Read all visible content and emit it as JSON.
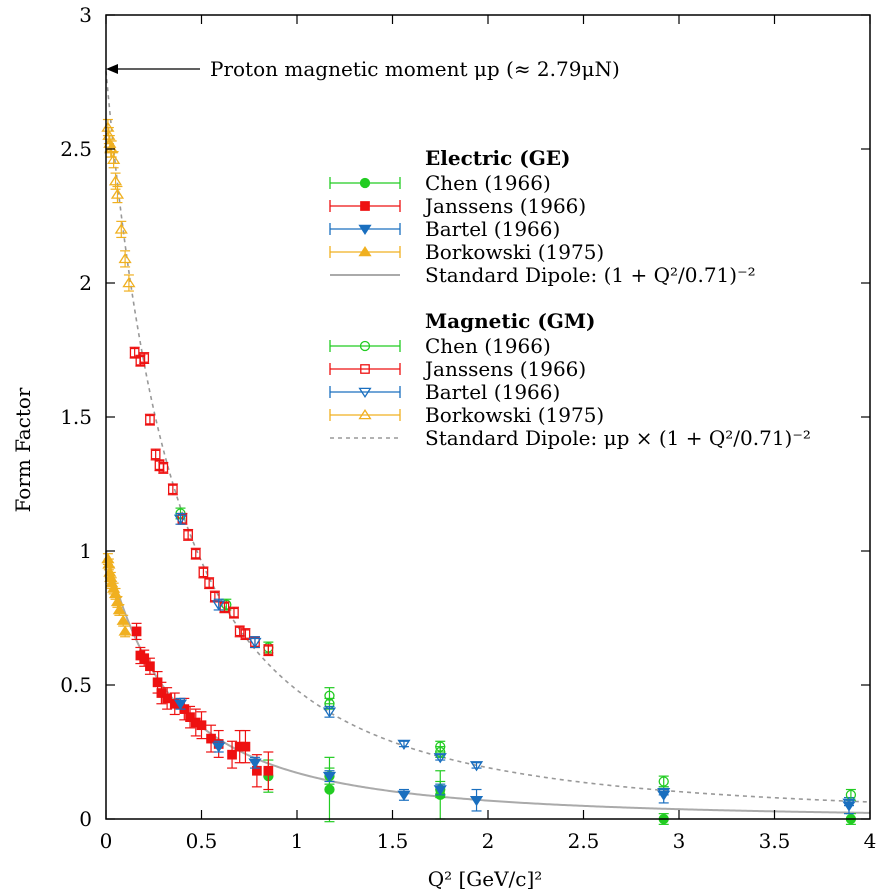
{
  "chart_data": {
    "type": "scatter",
    "xlabel": "Q² [GeV/c]²",
    "ylabel": "Form Factor",
    "xlim": [
      0,
      4
    ],
    "ylim": [
      0,
      3
    ],
    "x_ticks": [
      "0",
      "0.5",
      "1",
      "1.5",
      "2",
      "2.5",
      "3",
      "3.5",
      "4"
    ],
    "y_ticks": [
      "0",
      "0.5",
      "1",
      "1.5",
      "2",
      "2.5",
      "3"
    ],
    "x_tick_values": [
      0,
      0.5,
      1,
      1.5,
      2,
      2.5,
      3,
      3.5,
      4
    ],
    "y_tick_values": [
      0,
      0.5,
      1,
      1.5,
      2,
      2.5,
      3
    ],
    "grid": false,
    "legend_position": "upper-right",
    "annotation": {
      "text": "Proton magnetic moment μp (≈ 2.79μN)",
      "points_to": [
        0,
        2.79
      ]
    },
    "legend": {
      "electric_title": "Electric (GE)",
      "magnetic_title": "Magnetic (GM)",
      "electric_entries": [
        "Chen (1966)",
        "Janssens (1966)",
        "Bartel (1966)",
        "Borkowski (1975)",
        "Standard Dipole: (1 + Q²/0.71)⁻²"
      ],
      "magnetic_entries": [
        "Chen (1966)",
        "Janssens (1966)",
        "Bartel (1966)",
        "Borkowski (1975)",
        "Standard Dipole: μp × (1 + Q²/0.71)⁻²"
      ]
    },
    "colors": {
      "chen": "#22cc22",
      "janssens": "#ee1111",
      "bartel": "#1a6fbf",
      "borkowski": "#f0b020",
      "dipole_electric": "#aaaaaa",
      "dipole_magnetic": "#999999"
    },
    "curves": [
      {
        "name": "Standard Dipole: (1 + Q²/0.71)⁻²",
        "type": "line",
        "function": "dipole",
        "scale": 1,
        "style": "solid"
      },
      {
        "name": "Standard Dipole: μp × (1 + Q²/0.71)⁻²",
        "type": "line",
        "function": "dipole",
        "scale": 2.79,
        "style": "dashed"
      }
    ],
    "series": [
      {
        "name": "Chen (1966)",
        "group": "electric",
        "marker": "circle",
        "filled": true,
        "color_key": "chen",
        "points": [
          [
            0.85,
            0.16,
            0.06
          ],
          [
            1.17,
            0.11,
            0.12
          ],
          [
            1.17,
            0.16,
            0.03
          ],
          [
            1.75,
            0.09,
            0.09
          ],
          [
            1.75,
            0.11,
            0.03
          ],
          [
            2.92,
            0.0,
            0.02
          ],
          [
            3.9,
            0.0,
            0.02
          ]
        ]
      },
      {
        "name": "Janssens (1966)",
        "group": "electric",
        "marker": "square",
        "filled": true,
        "color_key": "janssens",
        "points": [
          [
            0.16,
            0.7,
            0.03
          ],
          [
            0.18,
            0.61,
            0.03
          ],
          [
            0.2,
            0.6,
            0.03
          ],
          [
            0.23,
            0.57,
            0.03
          ],
          [
            0.27,
            0.51,
            0.04
          ],
          [
            0.29,
            0.47,
            0.04
          ],
          [
            0.32,
            0.45,
            0.04
          ],
          [
            0.36,
            0.43,
            0.04
          ],
          [
            0.41,
            0.41,
            0.04
          ],
          [
            0.44,
            0.38,
            0.04
          ],
          [
            0.47,
            0.36,
            0.05
          ],
          [
            0.5,
            0.35,
            0.05
          ],
          [
            0.55,
            0.3,
            0.05
          ],
          [
            0.59,
            0.28,
            0.05
          ],
          [
            0.66,
            0.24,
            0.05
          ],
          [
            0.7,
            0.27,
            0.06
          ],
          [
            0.73,
            0.27,
            0.06
          ],
          [
            0.79,
            0.18,
            0.06
          ],
          [
            0.85,
            0.18,
            0.07
          ]
        ]
      },
      {
        "name": "Bartel (1966)",
        "group": "electric",
        "marker": "triangle-down",
        "filled": true,
        "color_key": "bartel",
        "points": [
          [
            0.39,
            0.43,
            0.02
          ],
          [
            0.59,
            0.27,
            0.02
          ],
          [
            0.78,
            0.21,
            0.02
          ],
          [
            1.17,
            0.16,
            0.02
          ],
          [
            1.56,
            0.09,
            0.02
          ],
          [
            1.75,
            0.11,
            0.02
          ],
          [
            1.94,
            0.07,
            0.04
          ],
          [
            2.92,
            0.09,
            0.03
          ],
          [
            3.89,
            0.05,
            0.03
          ]
        ]
      },
      {
        "name": "Borkowski (1975)",
        "group": "electric",
        "marker": "triangle-up",
        "filled": true,
        "color_key": "borkowski",
        "points": [
          [
            0.01,
            0.97,
            0.02
          ],
          [
            0.015,
            0.95,
            0.02
          ],
          [
            0.02,
            0.92,
            0.02
          ],
          [
            0.025,
            0.9,
            0.02
          ],
          [
            0.03,
            0.88,
            0.02
          ],
          [
            0.04,
            0.86,
            0.02
          ],
          [
            0.05,
            0.84,
            0.02
          ],
          [
            0.06,
            0.81,
            0.02
          ],
          [
            0.07,
            0.78,
            0.02
          ],
          [
            0.09,
            0.74,
            0.02
          ],
          [
            0.1,
            0.7,
            0.02
          ]
        ]
      },
      {
        "name": "Chen (1966)",
        "group": "magnetic",
        "marker": "circle",
        "filled": false,
        "color_key": "chen",
        "points": [
          [
            0.39,
            1.14,
            0.02
          ],
          [
            0.63,
            0.8,
            0.02
          ],
          [
            0.85,
            0.64,
            0.02
          ],
          [
            1.17,
            0.46,
            0.03
          ],
          [
            1.17,
            0.43,
            0.02
          ],
          [
            1.75,
            0.27,
            0.02
          ],
          [
            1.75,
            0.25,
            0.02
          ],
          [
            2.92,
            0.14,
            0.02
          ],
          [
            3.9,
            0.09,
            0.02
          ]
        ]
      },
      {
        "name": "Janssens (1966)",
        "group": "magnetic",
        "marker": "square",
        "filled": false,
        "color_key": "janssens",
        "points": [
          [
            0.15,
            1.74,
            0.02
          ],
          [
            0.18,
            1.71,
            0.02
          ],
          [
            0.2,
            1.72,
            0.02
          ],
          [
            0.23,
            1.49,
            0.02
          ],
          [
            0.26,
            1.36,
            0.02
          ],
          [
            0.28,
            1.32,
            0.02
          ],
          [
            0.3,
            1.31,
            0.02
          ],
          [
            0.35,
            1.23,
            0.02
          ],
          [
            0.4,
            1.12,
            0.02
          ],
          [
            0.43,
            1.06,
            0.02
          ],
          [
            0.47,
            0.99,
            0.02
          ],
          [
            0.51,
            0.92,
            0.02
          ],
          [
            0.54,
            0.88,
            0.02
          ],
          [
            0.57,
            0.83,
            0.02
          ],
          [
            0.62,
            0.79,
            0.02
          ],
          [
            0.67,
            0.77,
            0.02
          ],
          [
            0.7,
            0.7,
            0.02
          ],
          [
            0.73,
            0.69,
            0.02
          ],
          [
            0.78,
            0.66,
            0.02
          ],
          [
            0.85,
            0.63,
            0.02
          ]
        ]
      },
      {
        "name": "Bartel (1966)",
        "group": "magnetic",
        "marker": "triangle-down",
        "filled": false,
        "color_key": "bartel",
        "points": [
          [
            0.39,
            1.12,
            0.02
          ],
          [
            0.59,
            0.8,
            0.02
          ],
          [
            0.78,
            0.66,
            0.02
          ],
          [
            1.17,
            0.4,
            0.02
          ],
          [
            1.56,
            0.28,
            0.01
          ],
          [
            1.75,
            0.23,
            0.01
          ],
          [
            1.94,
            0.2,
            0.01
          ],
          [
            2.92,
            0.1,
            0.01
          ],
          [
            3.89,
            0.06,
            0.01
          ]
        ]
      },
      {
        "name": "Borkowski (1975)",
        "group": "magnetic",
        "marker": "triangle-up",
        "filled": false,
        "color_key": "borkowski",
        "points": [
          [
            0.01,
            2.58,
            0.03
          ],
          [
            0.015,
            2.55,
            0.03
          ],
          [
            0.02,
            2.52,
            0.03
          ],
          [
            0.025,
            2.5,
            0.03
          ],
          [
            0.03,
            2.5,
            0.03
          ],
          [
            0.04,
            2.46,
            0.03
          ],
          [
            0.05,
            2.38,
            0.03
          ],
          [
            0.06,
            2.33,
            0.03
          ],
          [
            0.08,
            2.2,
            0.03
          ],
          [
            0.1,
            2.09,
            0.03
          ],
          [
            0.12,
            2.0,
            0.03
          ]
        ]
      }
    ]
  }
}
